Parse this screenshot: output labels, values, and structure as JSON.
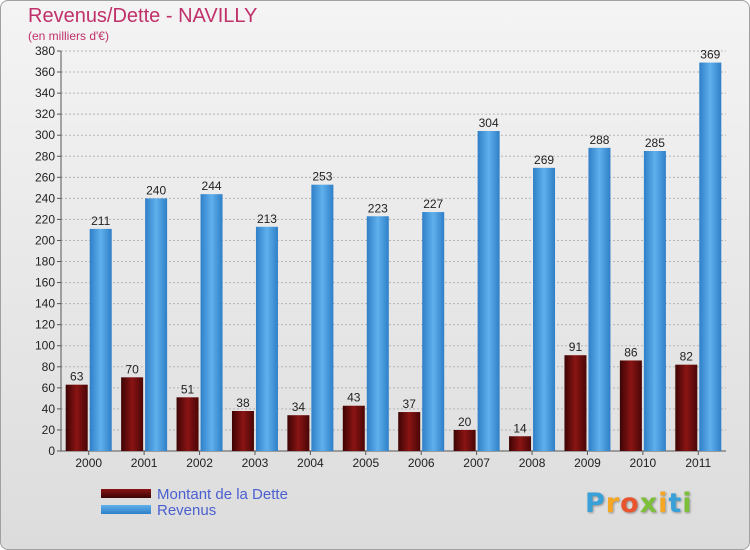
{
  "header": {
    "title": "Revenus/Dette - NAVILLY",
    "subtitle": "(en milliers d'€)"
  },
  "logo": {
    "letters": [
      "P",
      "r",
      "o",
      "x",
      "i",
      "t",
      "i"
    ]
  },
  "colors": {
    "dette": "#6b0a0a",
    "revenus": "#3f95dc",
    "axis_text": "#222222",
    "grid": "#b5b5b5"
  },
  "chart_data": {
    "type": "bar",
    "title": "Revenus/Dette - NAVILLY",
    "subtitle": "(en milliers d'€)",
    "categories": [
      "2000",
      "2001",
      "2002",
      "2003",
      "2004",
      "2005",
      "2006",
      "2007",
      "2008",
      "2009",
      "2010",
      "2011"
    ],
    "series": [
      {
        "name": "Montant de la Dette",
        "values": [
          63,
          70,
          51,
          38,
          34,
          43,
          37,
          20,
          14,
          91,
          86,
          82
        ]
      },
      {
        "name": "Revenus",
        "values": [
          211,
          240,
          244,
          213,
          253,
          223,
          227,
          304,
          269,
          288,
          285,
          369
        ]
      }
    ],
    "ylim": [
      0,
      380
    ],
    "yticks": [
      "0",
      "20",
      "40",
      "60",
      "80",
      "100",
      "120",
      "140",
      "160",
      "180",
      "200",
      "220",
      "240",
      "260",
      "280",
      "300",
      "320",
      "340",
      "360",
      "380"
    ],
    "grid": true,
    "legend_position": "bottom-left"
  }
}
